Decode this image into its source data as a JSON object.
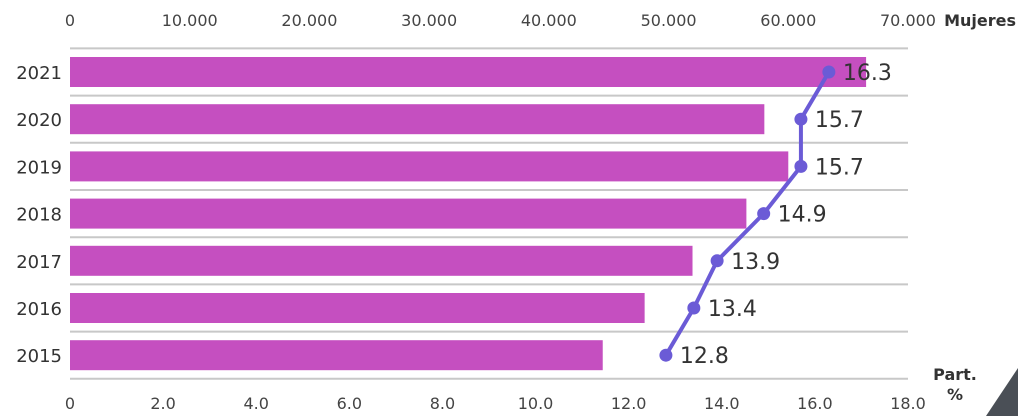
{
  "chart_data": {
    "type": "bar",
    "orientation": "horizontal",
    "categories": [
      "2021",
      "2020",
      "2019",
      "2018",
      "2017",
      "2016",
      "2015"
    ],
    "series": [
      {
        "name": "Mujeres",
        "type": "bar",
        "axis": "top",
        "color": "#c54fc0",
        "values": [
          66500,
          58000,
          60000,
          56500,
          52000,
          48000,
          44500
        ]
      },
      {
        "type": "line",
        "axis": "bottom",
        "color": "#6b5bd6",
        "values": [
          16.3,
          15.7,
          15.7,
          14.9,
          13.9,
          13.4,
          12.8
        ],
        "labels": [
          "16.3",
          "15.7",
          "15.7",
          "14.9",
          "13.9",
          "13.4",
          "12.8"
        ]
      }
    ],
    "top_axis": {
      "label": "Mujeres",
      "range": [
        0,
        70000
      ],
      "ticks": [
        "0",
        "10.000",
        "20.000",
        "30.000",
        "40.000",
        "50.000",
        "60.000",
        "70.000"
      ]
    },
    "bottom_axis": {
      "label_line1": "Part.",
      "label_line2": "%",
      "range": [
        0,
        18
      ],
      "ticks": [
        "0",
        "2.0",
        "4.0",
        "6.0",
        "8.0",
        "10.0",
        "12.0",
        "14.0",
        "16.0",
        "18.0"
      ]
    },
    "grid": true,
    "legend": "none"
  }
}
